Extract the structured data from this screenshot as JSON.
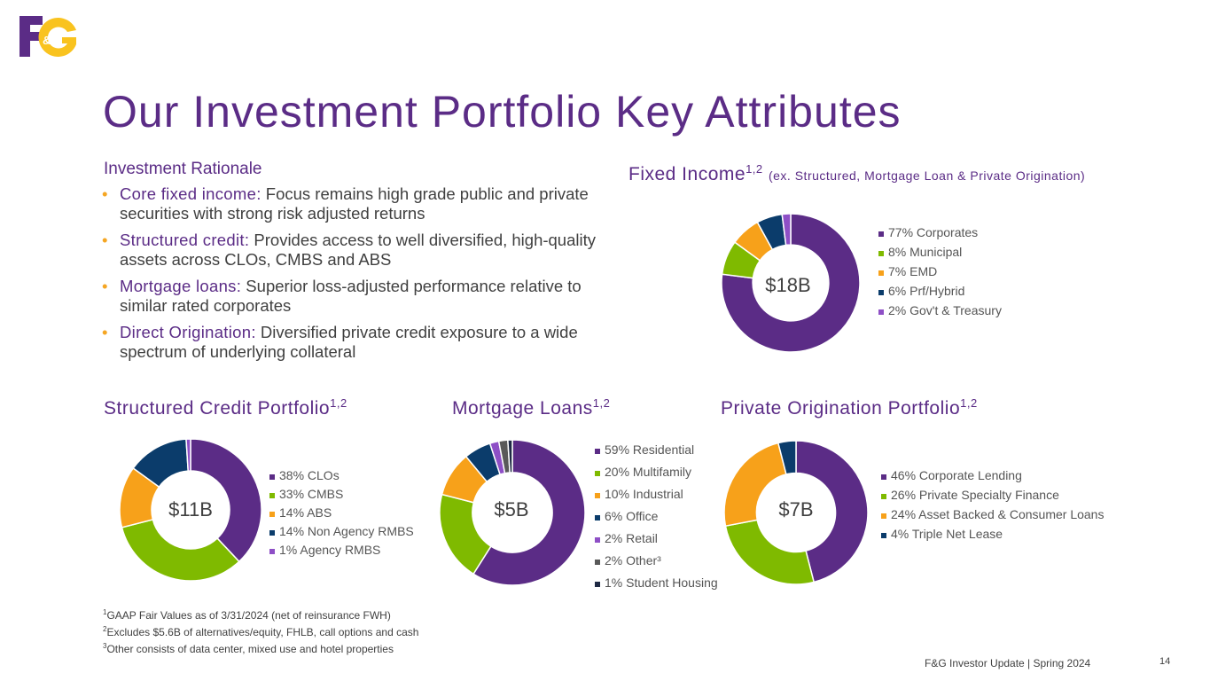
{
  "slide": {
    "title": "Our Investment Portfolio Key Attributes",
    "logo_text": "F&G",
    "rationale": {
      "heading": "Investment Rationale",
      "bullets": [
        {
          "lead": "Core fixed income:",
          "text": " Focus remains high grade public and private securities with strong risk adjusted returns"
        },
        {
          "lead": "Structured credit:",
          "text": " Provides access to well diversified, high-quality assets across CLOs, CMBS and ABS"
        },
        {
          "lead": "Mortgage loans:",
          "text": " Superior loss-adjusted performance relative to similar rated corporates"
        },
        {
          "lead": "Direct Origination:",
          "text": " Diversified private credit exposure to a wide spectrum of underlying collateral"
        }
      ]
    },
    "bullet_char": "•",
    "colors": {
      "purple": "#5b2c86",
      "green": "#7fba00",
      "orange": "#f7a11a",
      "navy": "#0b3c6b",
      "violet": "#8e4fc6",
      "gray": "#595959",
      "dark": "#1f2a44",
      "logo_yellow": "#f9c31f"
    },
    "footnotes": [
      {
        "num": "1",
        "text": "GAAP Fair Values as of 3/31/2024 (net of reinsurance FWH)"
      },
      {
        "num": "2",
        "text": "Excludes $5.6B of alternatives/equity, FHLB, call options and cash"
      },
      {
        "num": "3",
        "text": "Other consists of data center, mixed use and hotel properties"
      }
    ],
    "footer": "F&G Investor Update | Spring 2024",
    "page_number": "14"
  },
  "chart_data": [
    {
      "id": "fixed-income",
      "type": "pie",
      "title": "Fixed Income",
      "title_sup": "1,2",
      "title_note": "(ex. Structured, Mortgage Loan & Private Origination)",
      "center_label": "$18B",
      "legend_position": "right",
      "slices": [
        {
          "label": "77% Corporates",
          "value": 77,
          "color": "#5b2c86"
        },
        {
          "label": "8% Municipal",
          "value": 8,
          "color": "#7fba00"
        },
        {
          "label": "7% EMD",
          "value": 7,
          "color": "#f7a11a"
        },
        {
          "label": "6% Prf/Hybrid",
          "value": 6,
          "color": "#0b3c6b"
        },
        {
          "label": "2% Gov't & Treasury",
          "value": 2,
          "color": "#8e4fc6"
        }
      ]
    },
    {
      "id": "structured-credit",
      "type": "pie",
      "title": "Structured Credit Portfolio",
      "title_sup": "1,2",
      "center_label": "$11B",
      "legend_position": "right",
      "slices": [
        {
          "label": "38% CLOs",
          "value": 38,
          "color": "#5b2c86"
        },
        {
          "label": "33% CMBS",
          "value": 33,
          "color": "#7fba00"
        },
        {
          "label": "14% ABS",
          "value": 14,
          "color": "#f7a11a"
        },
        {
          "label": "14% Non Agency RMBS",
          "value": 14,
          "color": "#0b3c6b"
        },
        {
          "label": "1% Agency RMBS",
          "value": 1,
          "color": "#8e4fc6"
        }
      ]
    },
    {
      "id": "mortgage-loans",
      "type": "pie",
      "title": "Mortgage Loans",
      "title_sup": "1,2",
      "center_label": "$5B",
      "legend_position": "right",
      "slices": [
        {
          "label": "59% Residential",
          "value": 59,
          "color": "#5b2c86"
        },
        {
          "label": "20% Multifamily",
          "value": 20,
          "color": "#7fba00"
        },
        {
          "label": "10% Industrial",
          "value": 10,
          "color": "#f7a11a"
        },
        {
          "label": "6% Office",
          "value": 6,
          "color": "#0b3c6b"
        },
        {
          "label": "2% Retail",
          "value": 2,
          "color": "#8e4fc6"
        },
        {
          "label": "2% Other³",
          "value": 2,
          "color": "#595959"
        },
        {
          "label": "1% Student Housing",
          "value": 1,
          "color": "#1f2a44"
        }
      ]
    },
    {
      "id": "private-origination",
      "type": "pie",
      "title": "Private Origination Portfolio",
      "title_sup": "1,2",
      "center_label": "$7B",
      "legend_position": "right",
      "slices": [
        {
          "label": "46% Corporate Lending",
          "value": 46,
          "color": "#5b2c86"
        },
        {
          "label": "26% Private Specialty Finance",
          "value": 26,
          "color": "#7fba00"
        },
        {
          "label": "24% Asset Backed & Consumer Loans",
          "value": 24,
          "color": "#f7a11a"
        },
        {
          "label": "4% Triple Net Lease",
          "value": 4,
          "color": "#0b3c6b"
        }
      ]
    }
  ]
}
